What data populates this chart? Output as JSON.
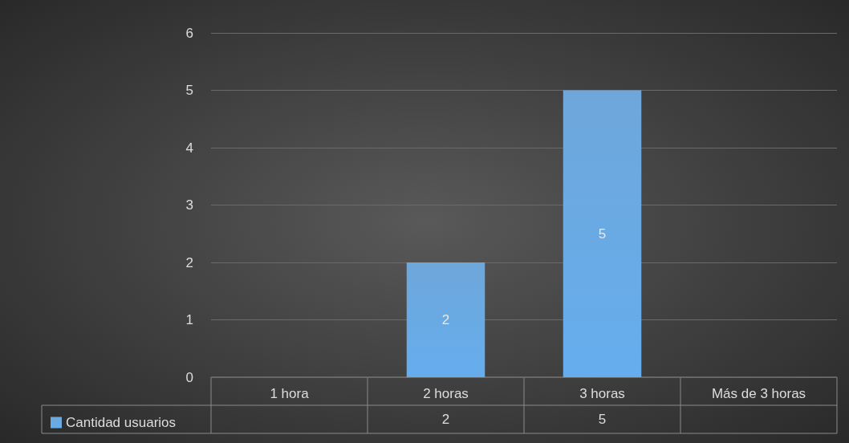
{
  "chart_data": {
    "type": "bar",
    "categories": [
      "1 hora",
      "2 horas",
      "3 horas",
      "Más de 3 horas"
    ],
    "series": [
      {
        "name": "Cantidad usuarios",
        "color": "#5b9bd5",
        "values": [
          null,
          2,
          5,
          null
        ]
      }
    ],
    "ylim": [
      0,
      6
    ],
    "yticks": [
      0,
      1,
      2,
      3,
      4,
      5,
      6
    ],
    "grid": "y",
    "legend": "bottom",
    "data_labels": true,
    "annotations": [
      "2",
      "5"
    ]
  }
}
